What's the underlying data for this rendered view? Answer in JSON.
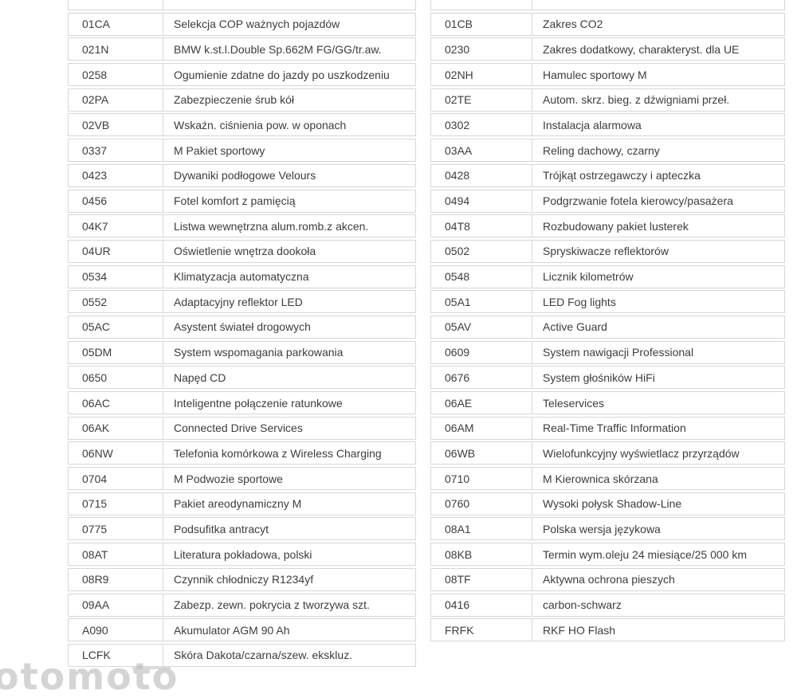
{
  "style": {
    "background_color": "#ffffff",
    "border_color": "#d7d7d7",
    "text_color": "#3d3d3d",
    "watermark_color": "#8f8f8f"
  },
  "left_table": {
    "rows": [
      {
        "code": "01CA",
        "desc": "Selekcja COP ważnych pojazdów"
      },
      {
        "code": "021N",
        "desc": "BMW k.st.l.Double Sp.662M FG/GG/tr.aw."
      },
      {
        "code": "0258",
        "desc": "Ogumienie zdatne do jazdy po uszkodzeniu"
      },
      {
        "code": "02PA",
        "desc": "Zabezpieczenie śrub kół"
      },
      {
        "code": "02VB",
        "desc": "Wskaźn. ciśnienia pow. w oponach"
      },
      {
        "code": "0337",
        "desc": "M Pakiet sportowy"
      },
      {
        "code": "0423",
        "desc": "Dywaniki podłogowe Velours"
      },
      {
        "code": "0456",
        "desc": "Fotel komfort z pamięcią"
      },
      {
        "code": "04K7",
        "desc": "Listwa wewnętrzna alum.romb.z akcen."
      },
      {
        "code": "04UR",
        "desc": "Oświetlenie wnętrza dookoła"
      },
      {
        "code": "0534",
        "desc": "Klimatyzacja automatyczna"
      },
      {
        "code": "0552",
        "desc": "Adaptacyjny reflektor LED"
      },
      {
        "code": "05AC",
        "desc": "Asystent świateł drogowych"
      },
      {
        "code": "05DM",
        "desc": "System wspomagania parkowania"
      },
      {
        "code": "0650",
        "desc": "Napęd CD"
      },
      {
        "code": "06AC",
        "desc": "Inteligentne połączenie ratunkowe"
      },
      {
        "code": "06AK",
        "desc": "Connected Drive Services"
      },
      {
        "code": "06NW",
        "desc": "Telefonia komórkowa z Wireless Charging"
      },
      {
        "code": "0704",
        "desc": "M Podwozie sportowe"
      },
      {
        "code": "0715",
        "desc": "Pakiet areodynamiczny M"
      },
      {
        "code": "0775",
        "desc": "Podsufitka antracyt"
      },
      {
        "code": "08AT",
        "desc": "Literatura pokładowa, polski"
      },
      {
        "code": "08R9",
        "desc": "Czynnik chłodniczy R1234yf"
      },
      {
        "code": "09AA",
        "desc": "Zabezp. zewn. pokrycia z tworzywa szt."
      },
      {
        "code": "A090",
        "desc": "Akumulator AGM 90 Ah"
      },
      {
        "code": "LCFK",
        "desc": "Skóra Dakota/czarna/szew. ekskluz."
      }
    ]
  },
  "right_table": {
    "rows": [
      {
        "code": "01CB",
        "desc": "Zakres CO2"
      },
      {
        "code": "0230",
        "desc": "Zakres dodatkowy, charakteryst. dla UE"
      },
      {
        "code": "02NH",
        "desc": "Hamulec sportowy M"
      },
      {
        "code": "02TE",
        "desc": "Autom. skrz. bieg. z dźwigniami przeł."
      },
      {
        "code": "0302",
        "desc": "Instalacja alarmowa"
      },
      {
        "code": "03AA",
        "desc": "Reling dachowy, czarny"
      },
      {
        "code": "0428",
        "desc": "Trójkąt ostrzegawczy i apteczka"
      },
      {
        "code": "0494",
        "desc": "Podgrzwanie fotela kierowcy/pasażera"
      },
      {
        "code": "04T8",
        "desc": "Rozbudowany pakiet lusterek"
      },
      {
        "code": "0502",
        "desc": "Spryskiwacze reflektorów"
      },
      {
        "code": "0548",
        "desc": "Licznik kilometrów"
      },
      {
        "code": "05A1",
        "desc": "LED Fog lights"
      },
      {
        "code": "05AV",
        "desc": "Active Guard"
      },
      {
        "code": "0609",
        "desc": "System nawigacji Professional"
      },
      {
        "code": "0676",
        "desc": "System głośników HiFi"
      },
      {
        "code": "06AE",
        "desc": "Teleservices"
      },
      {
        "code": "06AM",
        "desc": "Real-Time Traffic Information"
      },
      {
        "code": "06WB",
        "desc": "Wielofunkcyjny wyświetlacz przyrządów"
      },
      {
        "code": "0710",
        "desc": "M Kierownica skórzana"
      },
      {
        "code": "0760",
        "desc": "Wysoki połysk Shadow-Line"
      },
      {
        "code": "08A1",
        "desc": "Polska wersja językowa"
      },
      {
        "code": "08KB",
        "desc": "Termin wym.oleju 24 miesiące/25 000 km"
      },
      {
        "code": "08TF",
        "desc": "Aktywna ochrona pieszych"
      },
      {
        "code": "0416",
        "desc": "carbon-schwarz"
      },
      {
        "code": "FRFK",
        "desc": "RKF HO Flash"
      }
    ]
  },
  "watermark": {
    "text": "otomoto"
  }
}
